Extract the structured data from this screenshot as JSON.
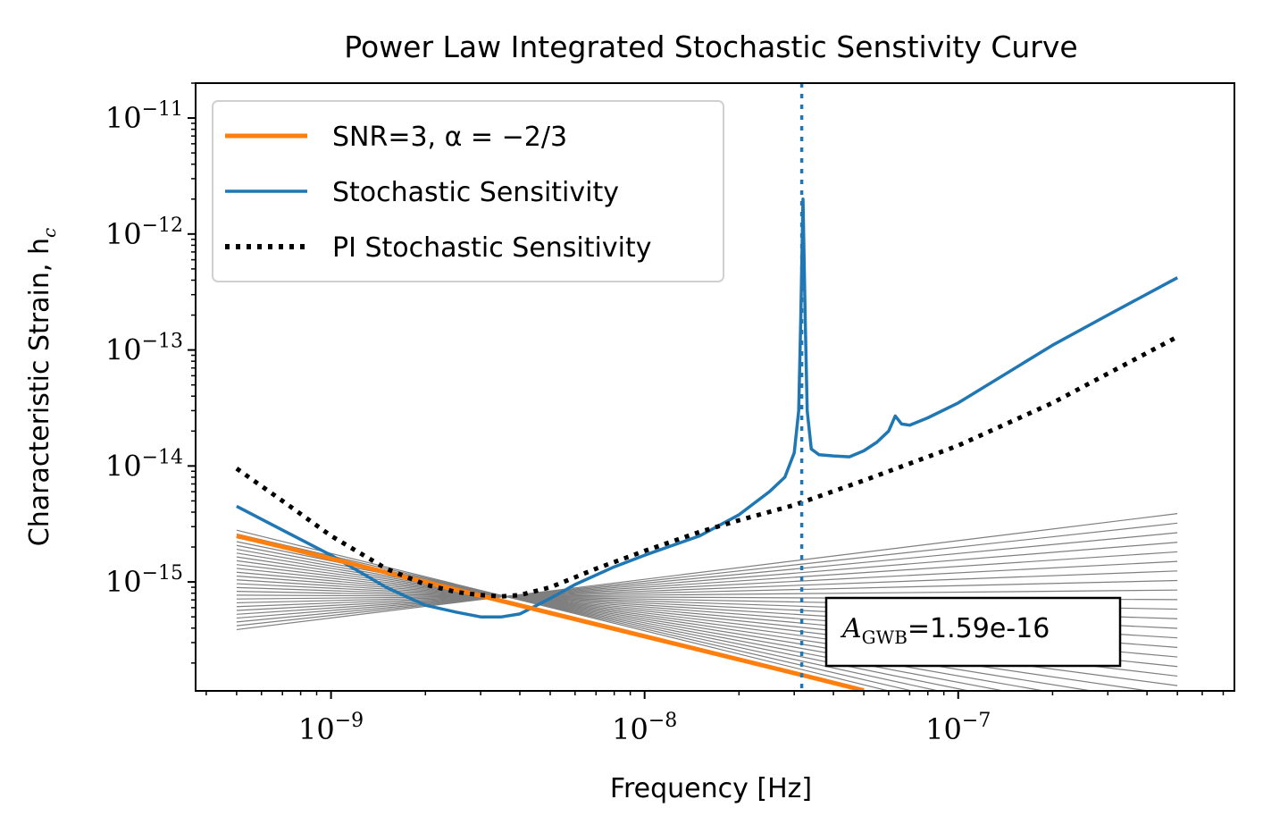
{
  "chart_data": {
    "type": "line",
    "title": "Power Law Integrated Stochastic Senstivity Curve",
    "xlabel": "Frequency [Hz]",
    "ylabel": "Characteristic Strain, h",
    "ylabel_sub": "c",
    "xscale": "log",
    "yscale": "log",
    "xlim": [
      3.7e-10,
      7.6e-07
    ],
    "ylim": [
      1.15e-16,
      2e-11
    ],
    "grid": false,
    "legend_position": "top-left",
    "x_ticks": [
      {
        "value": 1e-09,
        "base": "10",
        "exp": "−9"
      },
      {
        "value": 1e-08,
        "base": "10",
        "exp": "−8"
      },
      {
        "value": 1e-07,
        "base": "10",
        "exp": "−7"
      }
    ],
    "y_ticks": [
      {
        "value": 1e-11,
        "base": "10",
        "exp": "−11"
      },
      {
        "value": 1e-12,
        "base": "10",
        "exp": "−12"
      },
      {
        "value": 1e-13,
        "base": "10",
        "exp": "−13"
      },
      {
        "value": 1e-14,
        "base": "10",
        "exp": "−14"
      },
      {
        "value": 1e-15,
        "base": "10",
        "exp": "−15"
      }
    ],
    "legend": [
      {
        "label": "SNR=3, α = −2/3",
        "color": "#ff7f0e",
        "style": "solid"
      },
      {
        "label": "Stochastic Sensitivity",
        "color": "#1f77b4",
        "style": "solid"
      },
      {
        "label": "PI Stochastic Sensitivity",
        "color": "#000000",
        "style": "dotted"
      }
    ],
    "series": [
      {
        "name": "SNR=3, α = −2/3",
        "color": "#ff7f0e",
        "x": [
          5e-10,
          1e-09,
          3e-09,
          1e-08,
          3.2e-08,
          5e-08
        ],
        "y": [
          2.5e-15,
          1.59e-15,
          7.6e-16,
          3.4e-16,
          1.57e-16,
          1.16e-16
        ]
      },
      {
        "name": "Stochastic Sensitivity",
        "color": "#1f77b4",
        "x": [
          5e-10,
          7e-10,
          1e-09,
          1.5e-09,
          2e-09,
          2.5e-09,
          3e-09,
          3.5e-09,
          4e-09,
          5e-09,
          6e-09,
          8e-09,
          1e-08,
          1.5e-08,
          2e-08,
          2.5e-08,
          2.8e-08,
          3e-08,
          3.1e-08,
          3.15e-08,
          3.2e-08,
          3.25e-08,
          3.3e-08,
          3.4e-08,
          3.6e-08,
          4e-08,
          4.5e-08,
          5e-08,
          5.5e-08,
          6e-08,
          6.3e-08,
          6.6e-08,
          7e-08,
          8e-08,
          1e-07,
          2e-07,
          3e-07,
          5e-07
        ],
        "y": [
          4.5e-15,
          2.8e-15,
          1.7e-15,
          9e-16,
          6.3e-16,
          5.5e-16,
          5e-16,
          5e-16,
          5.3e-16,
          7.2e-16,
          9.5e-16,
          1.35e-15,
          1.7e-15,
          2.5e-15,
          3.8e-15,
          6e-15,
          8e-15,
          1.3e-14,
          3e-14,
          2e-13,
          2e-12,
          2e-13,
          3e-14,
          1.4e-14,
          1.25e-14,
          1.22e-14,
          1.2e-14,
          1.35e-14,
          1.6e-14,
          2e-14,
          2.7e-14,
          2.3e-14,
          2.25e-14,
          2.6e-14,
          3.5e-14,
          1.1e-13,
          2e-13,
          4.2e-13
        ]
      },
      {
        "name": "PI Stochastic Sensitivity",
        "color": "#000000",
        "x": [
          5e-10,
          7e-10,
          1e-09,
          1.5e-09,
          2e-09,
          2.5e-09,
          3e-09,
          3.5e-09,
          4e-09,
          5e-09,
          7e-09,
          1e-08,
          1.5e-08,
          2e-08,
          3e-08,
          5e-08,
          1e-07,
          2e-07,
          5e-07
        ],
        "y": [
          9.5e-15,
          5e-15,
          2.5e-15,
          1.3e-15,
          9.5e-16,
          8.2e-16,
          7.7e-16,
          7.5e-16,
          7.7e-16,
          9e-16,
          1.3e-15,
          1.85e-15,
          2.7e-15,
          3.4e-15,
          4.6e-15,
          7.5e-15,
          1.5e-14,
          3.5e-14,
          1.3e-13
        ]
      }
    ],
    "vertical_line": {
      "x": 3.17e-08,
      "color": "#1f77b4",
      "style": "dotted"
    },
    "annotation": {
      "symbol": "A",
      "subscript": "GWB",
      "text": "=1.59e-16"
    }
  }
}
